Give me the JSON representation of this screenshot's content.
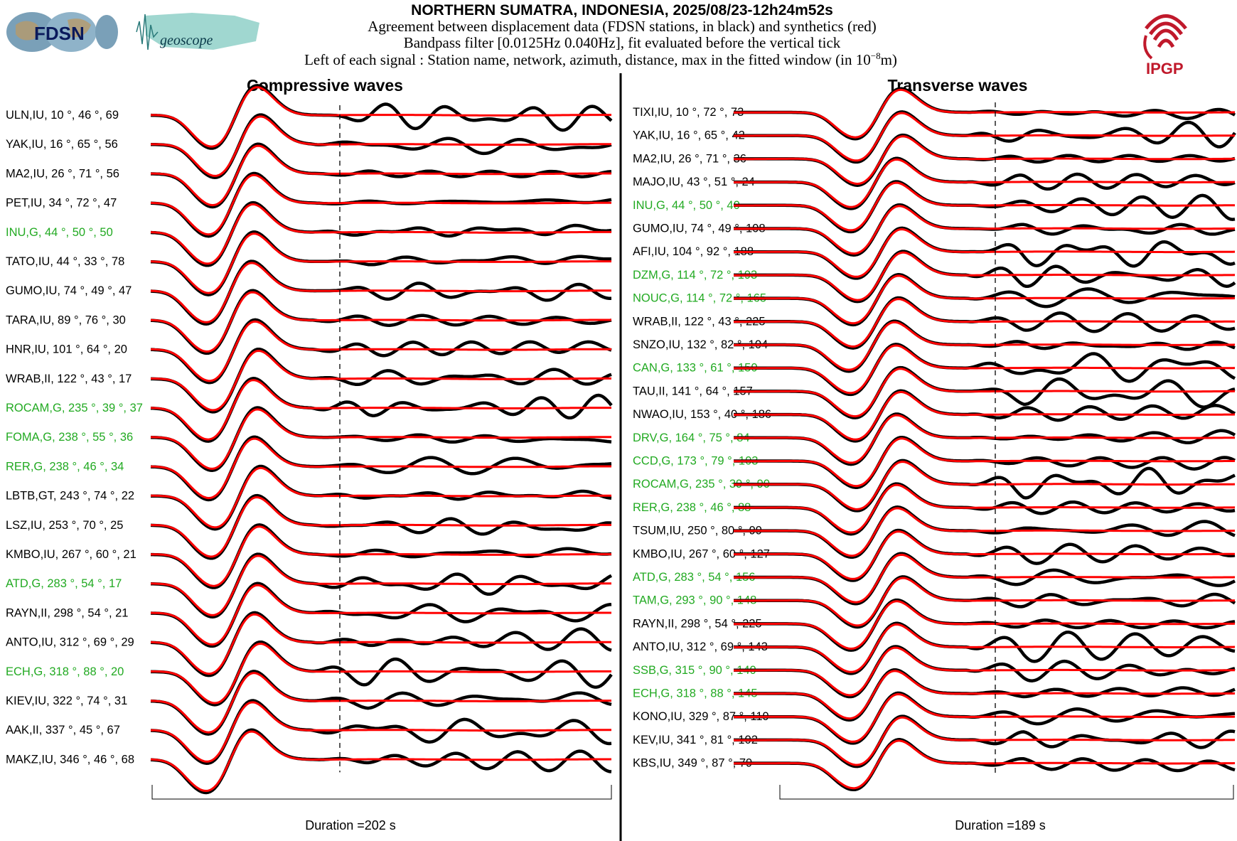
{
  "header": {
    "title": "NORTHERN SUMATRA, INDONESIA, 2025/08/23-12h24m52s",
    "line1": "Agreement between displacement data (FDSN stations, in black) and synthetics (red)",
    "line2": "Bandpass filter [0.0125Hz 0.040Hz], fit evaluated before the vertical tick",
    "line3_prefix": "Left of each signal : Station name, network, azimuth, distance, max in the fitted window (in 10",
    "line3_exp": "−8",
    "line3_suffix": "m)"
  },
  "logos": {
    "fdsn": "FDSN",
    "geoscope": "geoscope",
    "ipgp": "IPGP"
  },
  "colors": {
    "data": "#000000",
    "synthetic": "#ff0000",
    "green_station": "#22aa22",
    "label_default": "#000000",
    "ipgp": "#c0192b",
    "fdsn_fill": "#7aa0b8",
    "geoscope_fill": "#8fd0c8"
  },
  "chart_data": [
    {
      "type": "line",
      "title": "Compressive waves",
      "duration_label": "Duration =202 s",
      "stations": [
        {
          "label": "ULN,IU, 10 °, 46 °, 69",
          "green": false
        },
        {
          "label": "YAK,IU, 16 °, 65 °, 56",
          "green": false
        },
        {
          "label": "MA2,IU, 26 °, 71 °, 56",
          "green": false
        },
        {
          "label": "PET,IU, 34 °, 72 °, 47",
          "green": false
        },
        {
          "label": "INU,G, 44 °, 50 °, 50",
          "green": true
        },
        {
          "label": "TATO,IU, 44 °, 33 °, 78",
          "green": false
        },
        {
          "label": "GUMO,IU, 74 °, 49 °, 47",
          "green": false
        },
        {
          "label": "TARA,IU, 89 °, 76 °, 30",
          "green": false
        },
        {
          "label": "HNR,IU, 101 °, 64 °, 20",
          "green": false
        },
        {
          "label": "WRAB,II, 122 °, 43 °, 17",
          "green": false
        },
        {
          "label": "ROCAM,G, 235 °, 39 °, 37",
          "green": true
        },
        {
          "label": "FOMA,G, 238 °, 55 °, 36",
          "green": true
        },
        {
          "label": "RER,G, 238 °, 46 °, 34",
          "green": true
        },
        {
          "label": "LBTB,GT, 243 °, 74 °, 22",
          "green": false
        },
        {
          "label": "LSZ,IU, 253 °, 70 °, 25",
          "green": false
        },
        {
          "label": "KMBO,IU, 267 °, 60 °, 21",
          "green": false
        },
        {
          "label": "ATD,G, 283 °, 54 °, 17",
          "green": true
        },
        {
          "label": "RAYN,II, 298 °, 54 °, 21",
          "green": false
        },
        {
          "label": "ANTO,IU, 312 °, 69 °, 29",
          "green": false
        },
        {
          "label": "ECH,G, 318 °, 88 °, 20",
          "green": true
        },
        {
          "label": "KIEV,IU, 322 °, 74 °, 31",
          "green": false
        },
        {
          "label": "AAK,II, 337 °, 45 °, 67",
          "green": false
        },
        {
          "label": "MAKZ,IU, 346 °, 46 °, 68",
          "green": false
        }
      ]
    },
    {
      "type": "line",
      "title": "Transverse waves",
      "duration_label": "Duration =189 s",
      "stations": [
        {
          "label": "TIXI,IU, 10 °, 72 °, 73",
          "green": false
        },
        {
          "label": "YAK,IU, 16 °, 65 °, 42",
          "green": false
        },
        {
          "label": "MA2,IU, 26 °, 71 °, 36",
          "green": false
        },
        {
          "label": "MAJO,IU, 43 °, 51 °, 24",
          "green": false
        },
        {
          "label": "INU,G, 44 °, 50 °, 40",
          "green": true
        },
        {
          "label": "GUMO,IU, 74 °, 49 °, 108",
          "green": false
        },
        {
          "label": "AFI,IU, 104 °, 92 °, 188",
          "green": false
        },
        {
          "label": "DZM,G, 114 °, 72 °, 193",
          "green": true
        },
        {
          "label": "NOUC,G, 114 °, 72 °, 165",
          "green": true
        },
        {
          "label": "WRAB,II, 122 °, 43 °, 225",
          "green": false
        },
        {
          "label": "SNZO,IU, 132 °, 82 °, 104",
          "green": false
        },
        {
          "label": "CAN,G, 133 °, 61 °, 150",
          "green": true
        },
        {
          "label": "TAU,II, 141 °, 64 °, 157",
          "green": false
        },
        {
          "label": "NWAO,IU, 153 °, 40 °, 186",
          "green": false
        },
        {
          "label": "DRV,G, 164 °, 75 °, 84",
          "green": true
        },
        {
          "label": "CCD,G, 173 °, 79 °, 103",
          "green": true
        },
        {
          "label": "ROCAM,G, 235 °, 39 °, 90",
          "green": true
        },
        {
          "label": "RER,G, 238 °, 46 °, 88",
          "green": true
        },
        {
          "label": "TSUM,IU, 250 °, 80 °, 99",
          "green": false
        },
        {
          "label": "KMBO,IU, 267 °, 60 °, 127",
          "green": false
        },
        {
          "label": "ATD,G, 283 °, 54 °, 156",
          "green": true
        },
        {
          "label": "TAM,G, 293 °, 90 °, 148",
          "green": true
        },
        {
          "label": "RAYN,II, 298 °, 54 °, 225",
          "green": false
        },
        {
          "label": "ANTO,IU, 312 °, 69 °, 143",
          "green": false
        },
        {
          "label": "SSB,G, 315 °, 90 °, 140",
          "green": true
        },
        {
          "label": "ECH,G, 318 °, 88 °, 145",
          "green": true
        },
        {
          "label": "KONO,IU, 329 °, 87 °, 119",
          "green": false
        },
        {
          "label": "KEV,IU, 341 °, 81 °, 102",
          "green": false
        },
        {
          "label": "KBS,IU, 349 °, 87 °, 79",
          "green": false
        }
      ]
    }
  ]
}
